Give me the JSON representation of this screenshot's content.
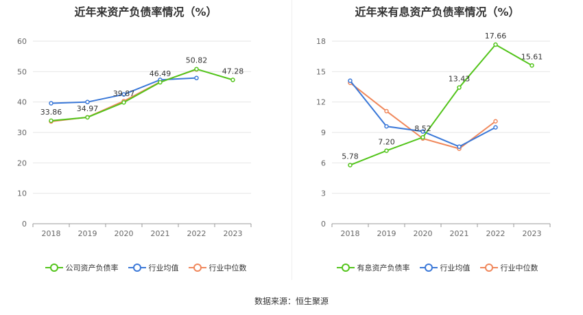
{
  "chart_data": [
    {
      "type": "line",
      "title": "近年来资产负债率情况（%）",
      "categories": [
        "2018",
        "2019",
        "2020",
        "2021",
        "2022",
        "2023"
      ],
      "ylim": [
        0,
        60
      ],
      "yticks": [
        0,
        10,
        20,
        30,
        40,
        50,
        60
      ],
      "grid": true,
      "legend_position": "bottom",
      "series": [
        {
          "name": "公司资产负债率",
          "color": "#52c41a",
          "values": [
            33.86,
            34.97,
            39.87,
            46.49,
            50.82,
            47.28
          ],
          "labeled": true
        },
        {
          "name": "行业均值",
          "color": "#3a78d8",
          "values": [
            39.6,
            40.0,
            42.5,
            47.3,
            47.9,
            null
          ],
          "labeled": false
        },
        {
          "name": "行业中位数",
          "color": "#f0875a",
          "values": [
            33.6,
            35.0,
            40.3,
            46.6,
            50.7,
            null
          ],
          "labeled": false
        }
      ]
    },
    {
      "type": "line",
      "title": "近年来有息资产负债率情况（%）",
      "categories": [
        "2018",
        "2019",
        "2020",
        "2021",
        "2022",
        "2023"
      ],
      "ylim": [
        0,
        18
      ],
      "yticks": [
        0,
        3,
        6,
        9,
        12,
        15,
        18
      ],
      "grid": true,
      "legend_position": "bottom",
      "series": [
        {
          "name": "有息资产负债率",
          "color": "#52c41a",
          "values": [
            5.78,
            7.2,
            8.52,
            13.43,
            17.66,
            15.61
          ],
          "labeled": true
        },
        {
          "name": "行业均值",
          "color": "#3a78d8",
          "values": [
            14.1,
            9.6,
            9.1,
            7.6,
            9.5,
            null
          ],
          "labeled": false
        },
        {
          "name": "行业中位数",
          "color": "#f0875a",
          "values": [
            13.9,
            11.1,
            8.4,
            7.4,
            10.1,
            null
          ],
          "labeled": false
        }
      ]
    }
  ],
  "source": "数据来源：恒生聚源"
}
